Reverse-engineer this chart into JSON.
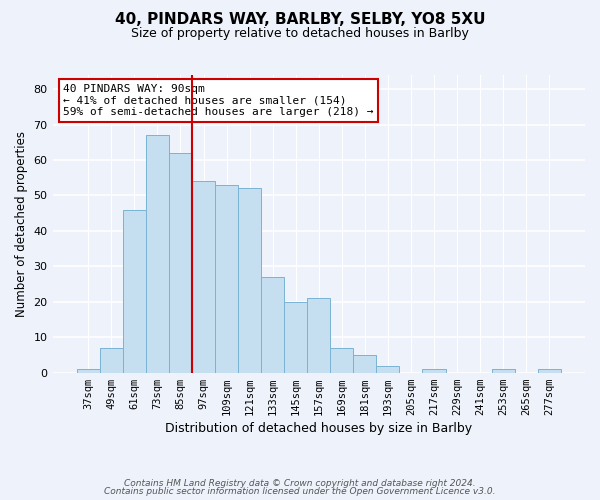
{
  "title": "40, PINDARS WAY, BARLBY, SELBY, YO8 5XU",
  "subtitle": "Size of property relative to detached houses in Barlby",
  "xlabel": "Distribution of detached houses by size in Barlby",
  "ylabel": "Number of detached properties",
  "bar_labels": [
    "37sqm",
    "49sqm",
    "61sqm",
    "73sqm",
    "85sqm",
    "97sqm",
    "109sqm",
    "121sqm",
    "133sqm",
    "145sqm",
    "157sqm",
    "169sqm",
    "181sqm",
    "193sqm",
    "205sqm",
    "217sqm",
    "229sqm",
    "241sqm",
    "253sqm",
    "265sqm",
    "277sqm"
  ],
  "bar_values": [
    1,
    7,
    46,
    67,
    62,
    54,
    53,
    52,
    27,
    20,
    21,
    7,
    5,
    2,
    0,
    1,
    0,
    0,
    1,
    0,
    1
  ],
  "bar_color": "#c6dff0",
  "bar_edgecolor": "#7ab3d4",
  "vline_x_index": 4.5,
  "vline_color": "#cc0000",
  "annotation_text": "40 PINDARS WAY: 90sqm\n← 41% of detached houses are smaller (154)\n59% of semi-detached houses are larger (218) →",
  "annotation_box_color": "#ffffff",
  "annotation_box_edgecolor": "#cc0000",
  "ylim": [
    0,
    84
  ],
  "yticks": [
    0,
    10,
    20,
    30,
    40,
    50,
    60,
    70,
    80
  ],
  "footnote_line1": "Contains HM Land Registry data © Crown copyright and database right 2024.",
  "footnote_line2": "Contains public sector information licensed under the Open Government Licence v3.0.",
  "bg_color": "#eef2fb"
}
